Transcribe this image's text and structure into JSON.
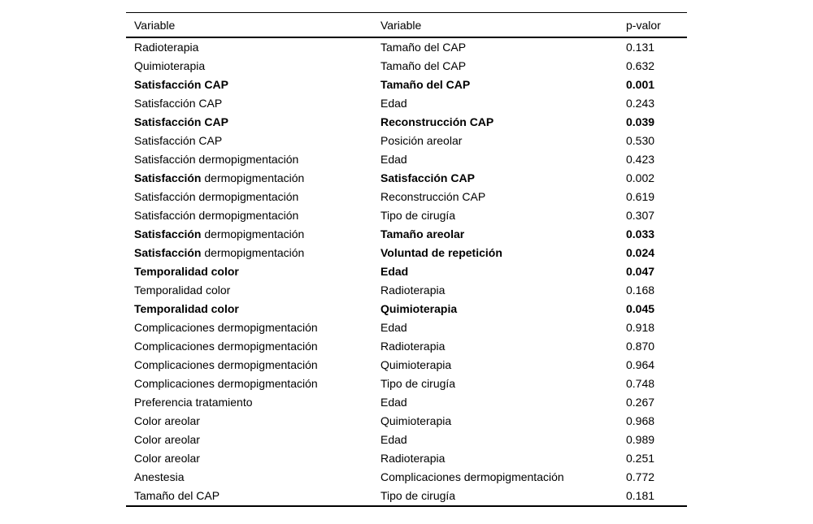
{
  "page": {
    "background": "#ffffff",
    "text_color": "#000000",
    "rule_color": "#000000"
  },
  "table": {
    "headers": {
      "col1": "Variable",
      "col2": "Variable",
      "col3": "p-valor"
    },
    "rows": [
      {
        "var1": "Radioterapia",
        "var2": "Tamaño del CAP",
        "p": "0.131",
        "bold1": false,
        "bold1_prefix": "",
        "bold2": false,
        "boldp": false
      },
      {
        "var1": "Quimioterapia",
        "var2": "Tamaño del CAP",
        "p": "0.632",
        "bold1": false,
        "bold1_prefix": "",
        "bold2": false,
        "boldp": false
      },
      {
        "var1": "Satisfacción CAP",
        "var2": "Tamaño del CAP",
        "p": "0.001",
        "bold1": true,
        "bold1_prefix": "",
        "bold2": true,
        "boldp": true
      },
      {
        "var1": "Satisfacción CAP",
        "var2": "Edad",
        "p": "0.243",
        "bold1": false,
        "bold1_prefix": "",
        "bold2": false,
        "boldp": false
      },
      {
        "var1": "Satisfacción CAP",
        "var2": "Reconstrucción CAP",
        "p": "0.039",
        "bold1": true,
        "bold1_prefix": "",
        "bold2": true,
        "boldp": true
      },
      {
        "var1": "Satisfacción CAP",
        "var2": "Posición areolar",
        "p": "0.530",
        "bold1": false,
        "bold1_prefix": "",
        "bold2": false,
        "boldp": false
      },
      {
        "var1": "Satisfacción dermopigmentación",
        "var2": "Edad",
        "p": "0.423",
        "bold1": false,
        "bold1_prefix": "",
        "bold2": false,
        "boldp": false
      },
      {
        "var1": "Satisfacción dermopigmentación",
        "var2": "Satisfacción CAP",
        "p": "0.002",
        "bold1": false,
        "bold1_prefix": "Satisfacción",
        "bold2": true,
        "boldp": false
      },
      {
        "var1": "Satisfacción dermopigmentación",
        "var2": "Reconstrucción CAP",
        "p": "0.619",
        "bold1": false,
        "bold1_prefix": "",
        "bold2": false,
        "boldp": false
      },
      {
        "var1": "Satisfacción dermopigmentación",
        "var2": "Tipo de cirugía",
        "p": "0.307",
        "bold1": false,
        "bold1_prefix": "",
        "bold2": false,
        "boldp": false
      },
      {
        "var1": "Satisfacción dermopigmentación",
        "var2": "Tamaño areolar",
        "p": "0.033",
        "bold1": false,
        "bold1_prefix": "Satisfacción",
        "bold2": true,
        "boldp": true
      },
      {
        "var1": "Satisfacción dermopigmentación",
        "var2": "Voluntad de repetición",
        "p": "0.024",
        "bold1": false,
        "bold1_prefix": "Satisfacción",
        "bold2": true,
        "boldp": true
      },
      {
        "var1": "Temporalidad color",
        "var2": "Edad",
        "p": "0.047",
        "bold1": true,
        "bold1_prefix": "",
        "bold2": true,
        "boldp": true
      },
      {
        "var1": "Temporalidad color",
        "var2": "Radioterapia",
        "p": "0.168",
        "bold1": false,
        "bold1_prefix": "",
        "bold2": false,
        "boldp": false
      },
      {
        "var1": "Temporalidad color",
        "var2": "Quimioterapia",
        "p": "0.045",
        "bold1": true,
        "bold1_prefix": "",
        "bold2": true,
        "boldp": true
      },
      {
        "var1": "Complicaciones dermopigmentación",
        "var2": "Edad",
        "p": "0.918",
        "bold1": false,
        "bold1_prefix": "",
        "bold2": false,
        "boldp": false
      },
      {
        "var1": "Complicaciones dermopigmentación",
        "var2": "Radioterapia",
        "p": "0.870",
        "bold1": false,
        "bold1_prefix": "",
        "bold2": false,
        "boldp": false
      },
      {
        "var1": "Complicaciones dermopigmentación",
        "var2": "Quimioterapia",
        "p": "0.964",
        "bold1": false,
        "bold1_prefix": "",
        "bold2": false,
        "boldp": false
      },
      {
        "var1": "Complicaciones dermopigmentación",
        "var2": "Tipo de cirugía",
        "p": "0.748",
        "bold1": false,
        "bold1_prefix": "",
        "bold2": false,
        "boldp": false
      },
      {
        "var1": "Preferencia tratamiento",
        "var2": "Edad",
        "p": "0.267",
        "bold1": false,
        "bold1_prefix": "",
        "bold2": false,
        "boldp": false
      },
      {
        "var1": "Color areolar",
        "var2": "Quimioterapia",
        "p": "0.968",
        "bold1": false,
        "bold1_prefix": "",
        "bold2": false,
        "boldp": false
      },
      {
        "var1": "Color areolar",
        "var2": "Edad",
        "p": "0.989",
        "bold1": false,
        "bold1_prefix": "",
        "bold2": false,
        "boldp": false
      },
      {
        "var1": "Color areolar",
        "var2": "Radioterapia",
        "p": "0.251",
        "bold1": false,
        "bold1_prefix": "",
        "bold2": false,
        "boldp": false
      },
      {
        "var1": "Anestesia",
        "var2": "Complicaciones dermopigmentación",
        "p": "0.772",
        "bold1": false,
        "bold1_prefix": "",
        "bold2": false,
        "boldp": false
      },
      {
        "var1": "Tamaño del CAP",
        "var2": "Tipo de cirugía",
        "p": "0.181",
        "bold1": false,
        "bold1_prefix": "",
        "bold2": false,
        "boldp": false
      }
    ]
  }
}
